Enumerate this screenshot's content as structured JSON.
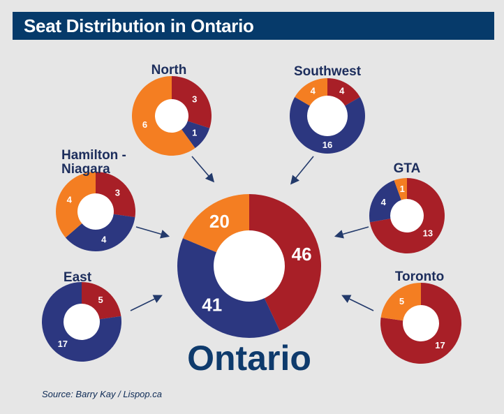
{
  "title": "Seat Distribution in Ontario",
  "source": "Source: Barry Kay / Lispop.ca",
  "colors": {
    "red": "#a81f27",
    "blue": "#2c3780",
    "orange": "#f47e22",
    "ring_bg": "#ffffff",
    "arrow": "#233a6b",
    "label_dark": "#1c2d5c"
  },
  "chart_data": {
    "type": "pie",
    "title": "Seat Distribution in Ontario",
    "charts": [
      {
        "name": "Ontario",
        "series": [
          {
            "name": "red",
            "value": 46
          },
          {
            "name": "blue",
            "value": 41
          },
          {
            "name": "orange",
            "value": 20
          }
        ]
      },
      {
        "name": "North",
        "series": [
          {
            "name": "red",
            "value": 3
          },
          {
            "name": "blue",
            "value": 1
          },
          {
            "name": "orange",
            "value": 6
          }
        ]
      },
      {
        "name": "Southwest",
        "series": [
          {
            "name": "red",
            "value": 4
          },
          {
            "name": "blue",
            "value": 16
          },
          {
            "name": "orange",
            "value": 4
          }
        ]
      },
      {
        "name": "Hamilton - Niagara",
        "series": [
          {
            "name": "red",
            "value": 3
          },
          {
            "name": "blue",
            "value": 4
          },
          {
            "name": "orange",
            "value": 4
          }
        ]
      },
      {
        "name": "GTA",
        "series": [
          {
            "name": "red",
            "value": 13
          },
          {
            "name": "blue",
            "value": 4
          },
          {
            "name": "orange",
            "value": 1
          }
        ]
      },
      {
        "name": "East",
        "series": [
          {
            "name": "red",
            "value": 5
          },
          {
            "name": "blue",
            "value": 17
          },
          {
            "name": "orange",
            "value": 0
          }
        ]
      },
      {
        "name": "Toronto",
        "series": [
          {
            "name": "red",
            "value": 17
          },
          {
            "name": "blue",
            "value": 0
          },
          {
            "name": "orange",
            "value": 5
          }
        ]
      }
    ]
  }
}
